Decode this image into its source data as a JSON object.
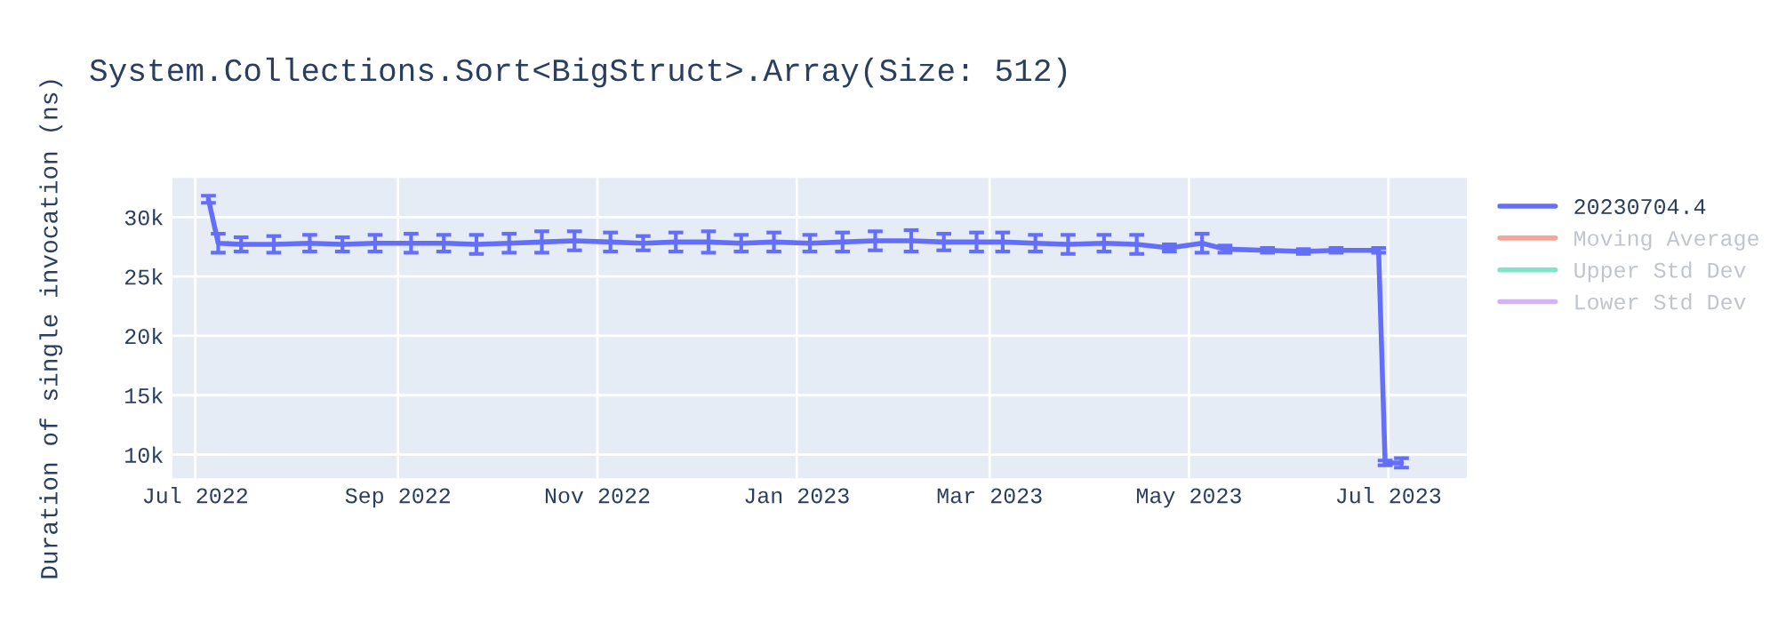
{
  "chart_data": {
    "type": "line",
    "title": "System.Collections.Sort<BigStruct>.Array(Size: 512)",
    "ylabel": "Duration of single invocation (ns)",
    "x": [
      "2022-07-05",
      "2022-07-08",
      "2022-07-15",
      "2022-07-25",
      "2022-08-05",
      "2022-08-15",
      "2022-08-25",
      "2022-09-05",
      "2022-09-15",
      "2022-09-25",
      "2022-10-05",
      "2022-10-15",
      "2022-10-25",
      "2022-11-05",
      "2022-11-15",
      "2022-11-25",
      "2022-12-05",
      "2022-12-15",
      "2022-12-25",
      "2023-01-05",
      "2023-01-15",
      "2023-01-25",
      "2023-02-05",
      "2023-02-15",
      "2023-02-25",
      "2023-03-05",
      "2023-03-15",
      "2023-03-25",
      "2023-04-05",
      "2023-04-15",
      "2023-04-25",
      "2023-05-05",
      "2023-05-12",
      "2023-05-25",
      "2023-06-05",
      "2023-06-15",
      "2023-06-28",
      "2023-06-30",
      "2023-07-05"
    ],
    "series": [
      {
        "name": "20230704.4",
        "color": "#636efa",
        "values": [
          31500,
          27800,
          27700,
          27700,
          27800,
          27700,
          27800,
          27800,
          27800,
          27700,
          27800,
          27900,
          28000,
          27900,
          27800,
          27900,
          27900,
          27800,
          27900,
          27800,
          27900,
          28000,
          28000,
          27900,
          27900,
          27900,
          27800,
          27700,
          27800,
          27700,
          27400,
          27800,
          27300,
          27200,
          27100,
          27200,
          27200,
          9300,
          9300
        ],
        "errors": [
          300,
          800,
          600,
          700,
          700,
          600,
          700,
          800,
          700,
          800,
          800,
          900,
          800,
          800,
          600,
          800,
          900,
          700,
          800,
          700,
          800,
          800,
          900,
          700,
          800,
          800,
          700,
          800,
          700,
          800,
          300,
          800,
          300,
          200,
          200,
          200,
          200,
          200,
          400
        ]
      },
      {
        "name": "Moving Average",
        "color": "#f5a795",
        "values": [
          null,
          null,
          null,
          null,
          null,
          null,
          null,
          null,
          null,
          null,
          null,
          null,
          null,
          null,
          null,
          null,
          null,
          null,
          null,
          null,
          null,
          null,
          null,
          null,
          null,
          null,
          null,
          null,
          null,
          null,
          null,
          null,
          null,
          null,
          null,
          null,
          null,
          null,
          null
        ]
      },
      {
        "name": "Upper Std Dev",
        "color": "#7fe5ca",
        "values": [
          null,
          null,
          null,
          null,
          null,
          null,
          null,
          null,
          null,
          null,
          null,
          null,
          null,
          null,
          null,
          null,
          null,
          null,
          null,
          null,
          null,
          null,
          null,
          null,
          null,
          null,
          null,
          null,
          null,
          null,
          null,
          null,
          null,
          null,
          null,
          null,
          null,
          null,
          null
        ]
      },
      {
        "name": "Lower Std Dev",
        "color": "#d5b1fc",
        "values": [
          null,
          null,
          null,
          null,
          null,
          null,
          null,
          null,
          null,
          null,
          null,
          null,
          null,
          null,
          null,
          null,
          null,
          null,
          null,
          null,
          null,
          null,
          null,
          null,
          null,
          null,
          null,
          null,
          null,
          null,
          null,
          null,
          null,
          null,
          null,
          null,
          null,
          null,
          null
        ]
      }
    ],
    "xlim": [
      "2022-06-24",
      "2023-07-25"
    ],
    "xticks": [
      {
        "value": "2022-07-01",
        "label": "Jul 2022"
      },
      {
        "value": "2022-09-01",
        "label": "Sep 2022"
      },
      {
        "value": "2022-11-01",
        "label": "Nov 2022"
      },
      {
        "value": "2023-01-01",
        "label": "Jan 2023"
      },
      {
        "value": "2023-03-01",
        "label": "Mar 2023"
      },
      {
        "value": "2023-05-01",
        "label": "May 2023"
      },
      {
        "value": "2023-07-01",
        "label": "Jul 2023"
      }
    ],
    "ylim": [
      8000,
      33300
    ],
    "yticks": [
      {
        "value": 10000,
        "label": "10k"
      },
      {
        "value": 15000,
        "label": "15k"
      },
      {
        "value": 20000,
        "label": "20k"
      },
      {
        "value": 25000,
        "label": "25k"
      },
      {
        "value": 30000,
        "label": "30k"
      }
    ],
    "grid": true,
    "legend": "right",
    "marker": "none",
    "line_style": "solid"
  }
}
